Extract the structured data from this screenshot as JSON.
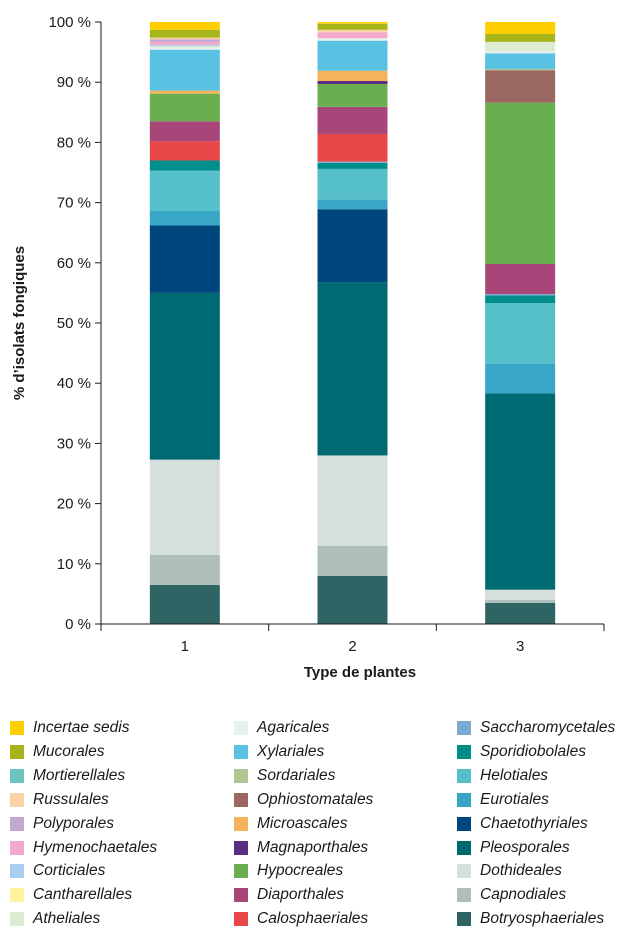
{
  "chart_data": {
    "type": "stacked-bar",
    "title": "",
    "xlabel": "Type de plantes",
    "ylabel": "% d’isolats fongiques",
    "ylim": [
      0,
      100
    ],
    "y_ticks": [
      "0 %",
      "10 %",
      "20 %",
      "30 %",
      "40 %",
      "50 %",
      "60 %",
      "70 %",
      "80 %",
      "90 %",
      "100 %"
    ],
    "categories": [
      "1",
      "2",
      "3"
    ],
    "grid": false,
    "series": [
      {
        "name": "Botryosphaeriales",
        "color": "#2e6463",
        "values": [
          6.5,
          8.0,
          3.5
        ]
      },
      {
        "name": "Capnodiales",
        "color": "#aebfba",
        "values": [
          5.0,
          5.0,
          0.5
        ]
      },
      {
        "name": "Dothideales",
        "color": "#d5dfdc",
        "values": [
          15.8,
          15.0,
          1.7
        ]
      },
      {
        "name": "Pleosporales",
        "color": "#006a73",
        "values": [
          27.7,
          28.8,
          32.6
        ]
      },
      {
        "name": "Chaetothyriales",
        "color": "#00457c",
        "values": [
          11.2,
          12.1,
          0
        ]
      },
      {
        "name": "Eurotiales",
        "color": "#38a6c6",
        "values": [
          2.4,
          1.6,
          5.0
        ]
      },
      {
        "name": "Helotiales",
        "color": "#55bfca",
        "values": [
          6.7,
          5.1,
          10.0
        ]
      },
      {
        "name": "Sporidiobolales",
        "color": "#008e8a",
        "values": [
          1.7,
          1.0,
          1.3
        ]
      },
      {
        "name": "Saccharomycetales",
        "color": "#7baad3",
        "values": [
          0,
          0.2,
          0.2
        ]
      },
      {
        "name": "Calosphaeriales",
        "color": "#e84747",
        "values": [
          3.2,
          4.6,
          0
        ]
      },
      {
        "name": "Diaporthales",
        "color": "#a8467a",
        "values": [
          3.3,
          4.5,
          5.0
        ]
      },
      {
        "name": "Hypocreales",
        "color": "#6aaf4f",
        "values": [
          4.6,
          3.8,
          26.8
        ]
      },
      {
        "name": "Magnaporthales",
        "color": "#5a2d82",
        "values": [
          0,
          0.5,
          0
        ]
      },
      {
        "name": "Microascales",
        "color": "#f5b35a",
        "values": [
          0.5,
          1.7,
          0
        ]
      },
      {
        "name": "Ophiostomatales",
        "color": "#9b6861",
        "values": [
          0,
          0,
          5.4
        ]
      },
      {
        "name": "Sordariales",
        "color": "#aec690",
        "values": [
          0,
          0,
          0.2
        ]
      },
      {
        "name": "Xylariales",
        "color": "#59c2e2",
        "values": [
          6.8,
          5.0,
          2.6
        ]
      },
      {
        "name": "Agaricales",
        "color": "#e6f2f2",
        "values": [
          0.3,
          0.4,
          0.3
        ]
      },
      {
        "name": "Atheliales",
        "color": "#ddebd2",
        "values": [
          0.3,
          0,
          1.6
        ]
      },
      {
        "name": "Cantharellales",
        "color": "#fff3a0",
        "values": [
          0,
          0,
          0
        ]
      },
      {
        "name": "Corticiales",
        "color": "#a9cdef",
        "values": [
          0.2,
          0,
          0
        ]
      },
      {
        "name": "Hymenochaetales",
        "color": "#f3a9c9",
        "values": [
          0.5,
          1.0,
          0
        ]
      },
      {
        "name": "Polyporales",
        "color": "#c3a8d1",
        "values": [
          0.4,
          0,
          0
        ]
      },
      {
        "name": "Russulales",
        "color": "#fdd2a8",
        "values": [
          0.3,
          0.4,
          0
        ]
      },
      {
        "name": "Mortierellales",
        "color": "#6cc3bf",
        "values": [
          0,
          0,
          0
        ]
      },
      {
        "name": "Mucorales",
        "color": "#a6b61a",
        "values": [
          1.3,
          1.0,
          1.3
        ]
      },
      {
        "name": "Incertae sedis",
        "color": "#ffce00",
        "values": [
          1.3,
          0.3,
          2.0
        ]
      }
    ],
    "legend": {
      "placement": "bottom",
      "columns": [
        [
          "Incertae sedis",
          "Mucorales",
          "Mortierellales",
          "Russulales",
          "Polyporales",
          "Hymenochaetales",
          "Corticiales",
          "Cantharellales",
          "Atheliales"
        ],
        [
          "Agaricales",
          "Xylariales",
          "Sordariales",
          "Ophiostomatales",
          "Microascales",
          "Magnaporthales",
          "Hypocreales",
          "Diaporthales",
          "Calosphaeriales"
        ],
        [
          "Saccharomycetales",
          "Sporidiobolales",
          "Helotiales",
          "Eurotiales",
          "Chaetothyriales",
          "Pleosporales",
          "Dothideales",
          "Capnodiales",
          "Botryosphaeriales"
        ]
      ]
    }
  }
}
